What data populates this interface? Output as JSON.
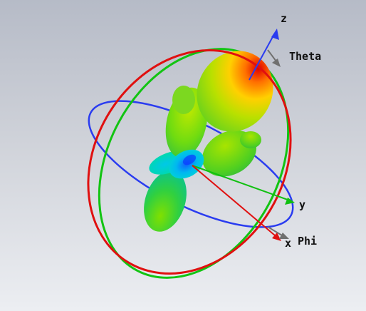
{
  "axes": {
    "z_label": "z",
    "y_label": "y",
    "x_label": "x",
    "theta_label": "Theta",
    "phi_label": "Phi"
  },
  "colors": {
    "x_axis": "#e01010",
    "y_axis": "#10c010",
    "z_axis": "#2a3cf0",
    "theta_arrow": "#707070",
    "phi_arrow": "#707070",
    "ring_red": "#e01010",
    "ring_green": "#12c412",
    "ring_blue": "#2a3cf0"
  },
  "pattern": {
    "type": "3D radiation pattern",
    "colormap": [
      "#1040ff",
      "#00c8ff",
      "#00e0a0",
      "#40e000",
      "#c8e000",
      "#ffc800",
      "#ff6000",
      "#e00000"
    ]
  }
}
